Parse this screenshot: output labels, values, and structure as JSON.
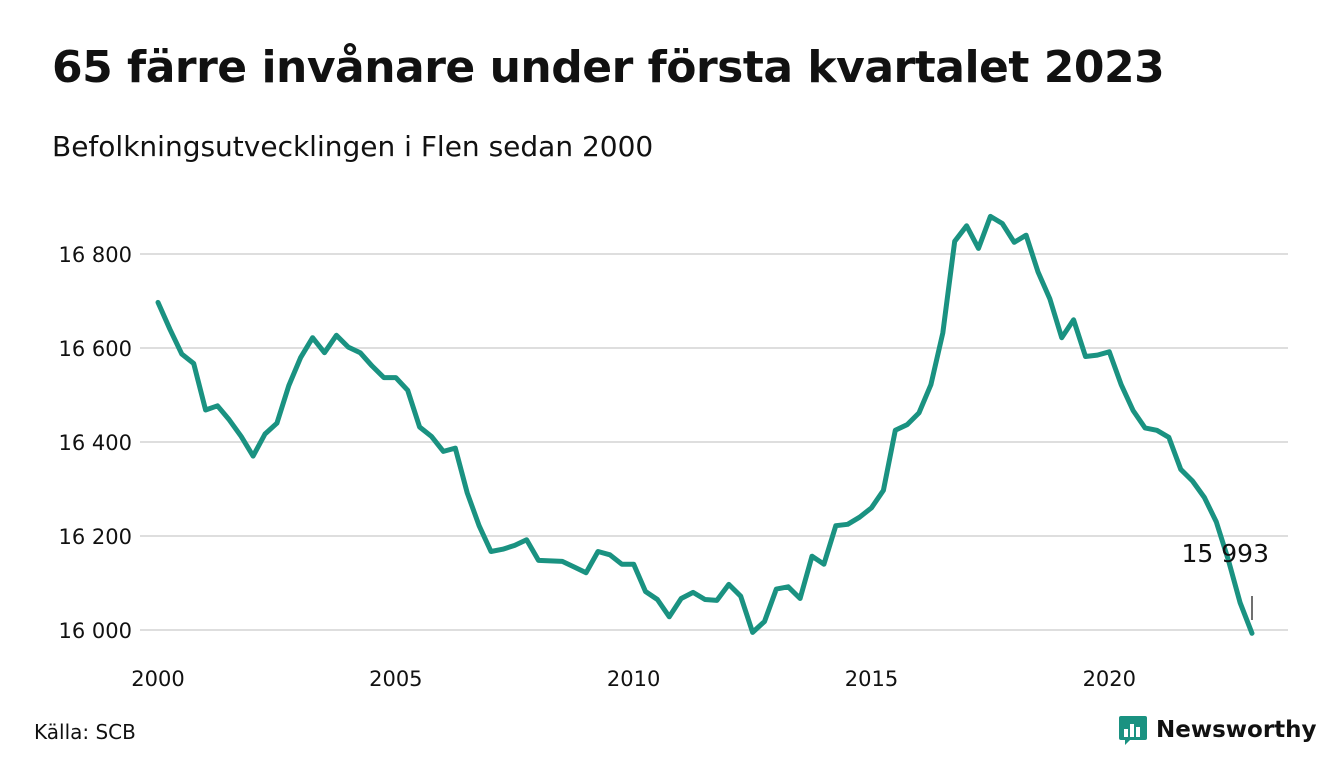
{
  "header": {
    "title": "65 färre invånare under första kvartalet 2023",
    "subtitle": "Befolkningsutvecklingen i Flen sedan 2000"
  },
  "footer": {
    "source": "Källa: SCB",
    "brand": "Newsworthy"
  },
  "colors": {
    "line": "#1a9281",
    "grid": "#dedede",
    "text": "#111111",
    "brand": "#1a9281"
  },
  "chart_data": {
    "type": "line",
    "x_start_year": 2000,
    "x_start_quarter": 1,
    "x_ticks": [
      2000,
      2005,
      2010,
      2015,
      2020
    ],
    "y_ticks": [
      16000,
      16200,
      16400,
      16600,
      16800
    ],
    "y_tick_labels": [
      "16 000",
      "16 200",
      "16 400",
      "16 600",
      "16 800"
    ],
    "ylim": [
      15993,
      16890
    ],
    "xlim": [
      "2000 Q1",
      "2023 Q1"
    ],
    "grid": "horizontal",
    "end_label": "15 993",
    "values": [
      16697,
      16640,
      16587,
      16567,
      16468,
      16477,
      16447,
      16412,
      16370,
      16417,
      16440,
      16520,
      16580,
      16622,
      16590,
      16627,
      16602,
      16590,
      16562,
      16537,
      16537,
      16510,
      16432,
      16412,
      16380,
      16387,
      16292,
      16222,
      16167,
      16172,
      16180,
      16192,
      16148,
      16147,
      16146,
      16134,
      16122,
      16167,
      16160,
      16140,
      16140,
      16082,
      16065,
      16028,
      16067,
      16080,
      16065,
      16063,
      16097,
      16072,
      15995,
      16018,
      16087,
      16092,
      16067,
      16157,
      16140,
      16222,
      16225,
      16240,
      16260,
      16297,
      16425,
      16437,
      16462,
      16522,
      16632,
      16827,
      16860,
      16812,
      16880,
      16865,
      16825,
      16840,
      16762,
      16705,
      16622,
      16660,
      16582,
      16585,
      16592,
      16522,
      16467,
      16430,
      16425,
      16410,
      16342,
      16317,
      16282,
      16230,
      16150,
      16058,
      15993
    ]
  }
}
